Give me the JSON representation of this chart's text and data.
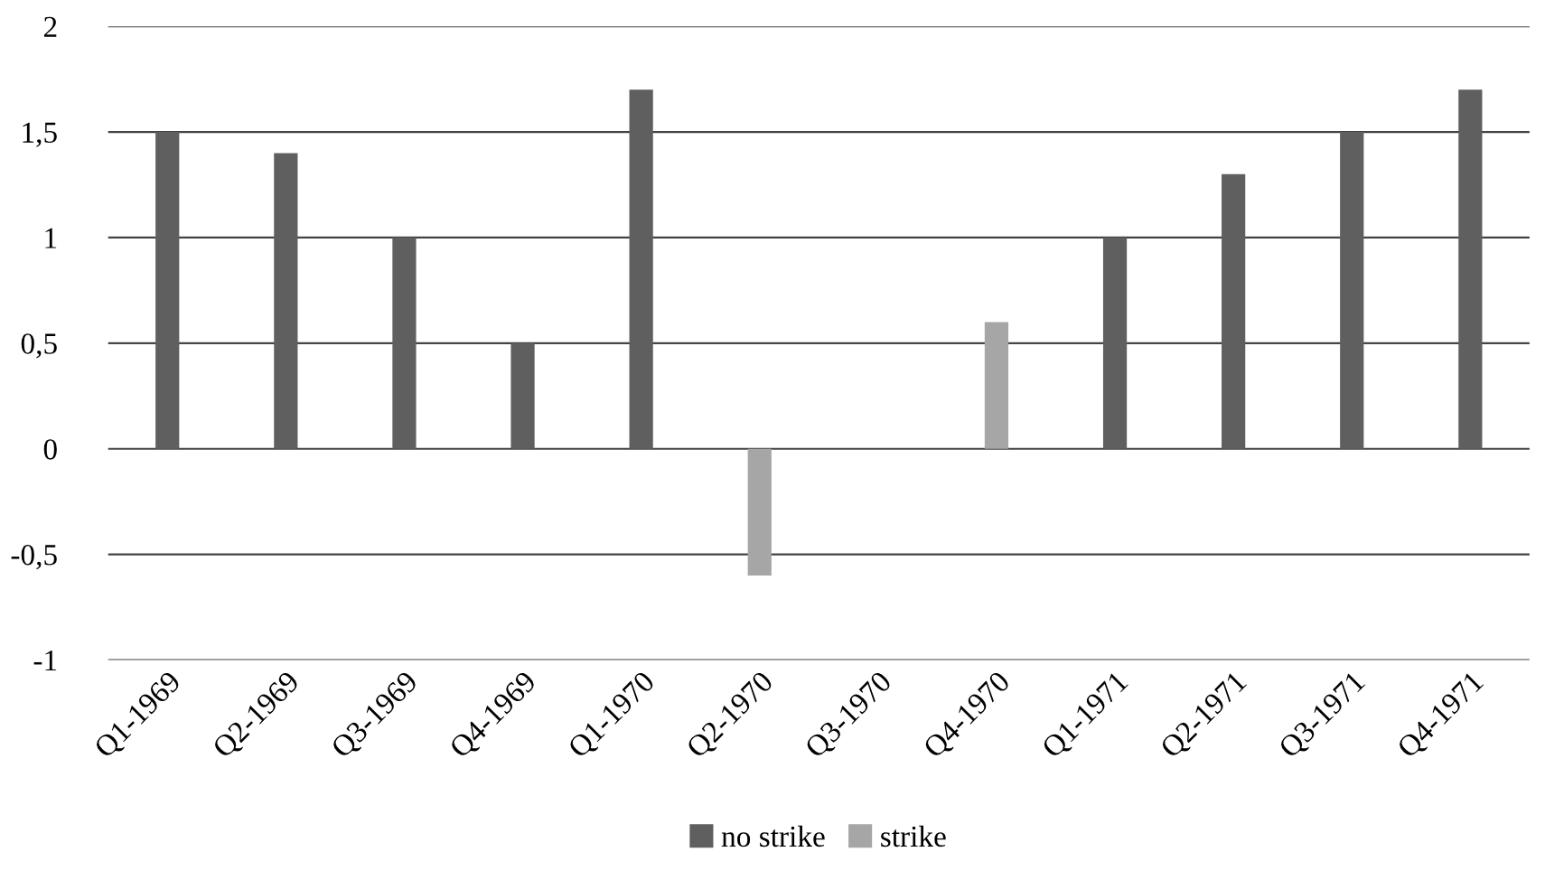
{
  "chart_data": {
    "type": "bar",
    "categories": [
      "Q1-1969",
      "Q2-1969",
      "Q3-1969",
      "Q4-1969",
      "Q1-1970",
      "Q2-1970",
      "Q3-1970",
      "Q4-1970",
      "Q1-1971",
      "Q2-1971",
      "Q3-1971",
      "Q4-1971"
    ],
    "series": [
      {
        "name": "no strike",
        "color": "#5f5f5f",
        "values": [
          1.5,
          1.4,
          1.0,
          0.5,
          1.7,
          null,
          null,
          null,
          1.0,
          1.3,
          1.5,
          1.7
        ]
      },
      {
        "name": "strike",
        "color": "#a6a6a6",
        "values": [
          null,
          null,
          null,
          null,
          null,
          -0.6,
          null,
          0.6,
          null,
          null,
          null,
          null
        ]
      }
    ],
    "ylim": [
      -1,
      2
    ],
    "yticks": [
      -1,
      {
        "value": -0.5,
        "label": "-0,5"
      },
      0,
      {
        "value": 0.5,
        "label": "0,5"
      },
      1,
      {
        "value": 1.5,
        "label": "1,5"
      },
      2
    ],
    "grid": "y",
    "legend": "bottom"
  }
}
